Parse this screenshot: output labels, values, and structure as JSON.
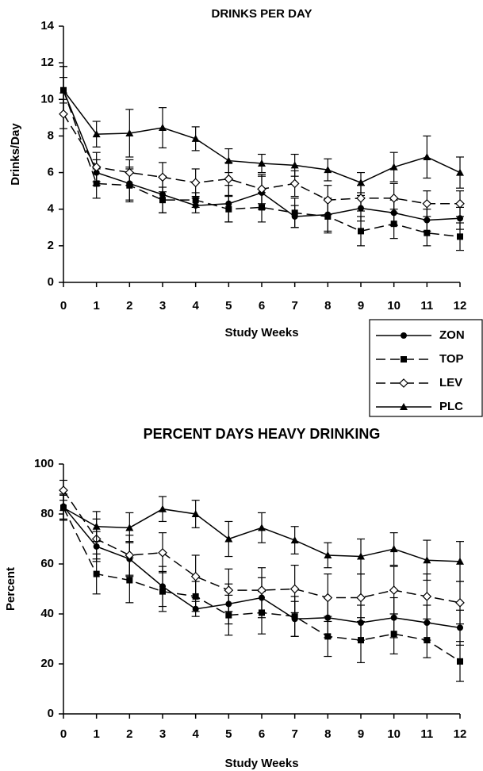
{
  "chart_data": [
    {
      "type": "line",
      "title": "DRINKS PER DAY",
      "x_label": "Study Weeks",
      "y_label": "Drinks/Day",
      "x": [
        0,
        1,
        2,
        3,
        4,
        5,
        6,
        7,
        8,
        9,
        10,
        11,
        12
      ],
      "xlim": [
        0,
        12
      ],
      "xticks": [
        0,
        1,
        2,
        3,
        4,
        5,
        6,
        7,
        8,
        9,
        10,
        11,
        12
      ],
      "ylim": [
        0,
        14
      ],
      "yticks": [
        0,
        2,
        4,
        6,
        8,
        10,
        12,
        14
      ],
      "legend": "bottom-right",
      "series": [
        {
          "name": "ZON",
          "color": "#000000",
          "marker": "circle",
          "dash": false,
          "values": [
            10.5,
            6.0,
            5.4,
            4.8,
            4.2,
            4.3,
            4.9,
            3.6,
            3.7,
            4.05,
            3.8,
            3.4,
            3.5
          ],
          "errors": [
            1.3,
            0.7,
            0.9,
            1.0,
            0.4,
            1.0,
            0.9,
            0.6,
            0.9,
            0.7,
            0.7,
            0.6,
            0.6
          ]
        },
        {
          "name": "TOP",
          "color": "#000000",
          "marker": "square",
          "dash": true,
          "values": [
            10.5,
            5.4,
            5.3,
            4.5,
            4.5,
            4.0,
            4.1,
            3.8,
            3.6,
            2.8,
            3.2,
            2.7,
            2.5
          ],
          "errors": [
            1.3,
            0.8,
            0.9,
            0.7,
            0.4,
            0.7,
            0.8,
            0.8,
            0.9,
            0.8,
            0.8,
            0.7,
            0.75
          ]
        },
        {
          "name": "LEV",
          "color": "#000000",
          "marker": "diamond",
          "dash": true,
          "values": [
            9.2,
            6.3,
            6.0,
            5.75,
            5.45,
            5.65,
            5.1,
            5.4,
            4.5,
            4.6,
            4.6,
            4.3,
            4.3
          ],
          "errors": [
            0.8,
            0.8,
            0.7,
            0.8,
            0.75,
            0.9,
            0.8,
            0.7,
            0.8,
            0.7,
            0.8,
            0.7,
            0.7
          ]
        },
        {
          "name": "PLC",
          "color": "#000000",
          "marker": "triangle",
          "dash": false,
          "values": [
            10.5,
            8.1,
            8.15,
            8.45,
            7.85,
            6.65,
            6.5,
            6.4,
            6.15,
            5.45,
            6.3,
            6.85,
            6.0
          ],
          "errors": [
            0.7,
            0.7,
            1.3,
            1.1,
            0.65,
            0.65,
            0.5,
            0.6,
            0.6,
            0.55,
            0.8,
            1.15,
            0.85
          ]
        }
      ]
    },
    {
      "type": "line",
      "title": "PERCENT DAYS HEAVY DRINKING",
      "x_label": "Study Weeks",
      "y_label": "Percent",
      "x": [
        0,
        1,
        2,
        3,
        4,
        5,
        6,
        7,
        8,
        9,
        10,
        11,
        12
      ],
      "xlim": [
        0,
        12
      ],
      "xticks": [
        0,
        1,
        2,
        3,
        4,
        5,
        6,
        7,
        8,
        9,
        10,
        11,
        12
      ],
      "ylim": [
        0,
        100
      ],
      "yticks": [
        0,
        20,
        40,
        60,
        80,
        100
      ],
      "series": [
        {
          "name": "ZON",
          "color": "#000000",
          "marker": "circle",
          "dash": false,
          "values": [
            83,
            67,
            62,
            51,
            42,
            44,
            46.5,
            38,
            38.5,
            36.5,
            38.5,
            36.5,
            34.5
          ],
          "errors": [
            5,
            6,
            7,
            8,
            3,
            8,
            8,
            7,
            8,
            7,
            8,
            7,
            7
          ]
        },
        {
          "name": "TOP",
          "color": "#000000",
          "marker": "square",
          "dash": true,
          "values": [
            82.5,
            56,
            53.5,
            49,
            47,
            39.5,
            40.5,
            39,
            31,
            29.5,
            32,
            29.5,
            21
          ],
          "errors": [
            5,
            8,
            9,
            8,
            6,
            8,
            8.5,
            8,
            8,
            9,
            8,
            7,
            8
          ]
        },
        {
          "name": "LEV",
          "color": "#000000",
          "marker": "diamond",
          "dash": true,
          "values": [
            89.5,
            70,
            63.5,
            64.5,
            55,
            49.5,
            49.5,
            50,
            46.5,
            46.5,
            49.5,
            47,
            44.5
          ],
          "errors": [
            4,
            8,
            8,
            8,
            8.5,
            8.5,
            9,
            9.5,
            9.5,
            9.5,
            9.5,
            9,
            8.5
          ]
        },
        {
          "name": "PLC",
          "color": "#000000",
          "marker": "triangle",
          "dash": false,
          "values": [
            82.5,
            75,
            74.5,
            82,
            80,
            70,
            74.5,
            69.5,
            63.5,
            63,
            66,
            61.5,
            61
          ],
          "errors": [
            5,
            6,
            6,
            5,
            5.5,
            7,
            6,
            5.5,
            5,
            7,
            6.5,
            8,
            8
          ]
        }
      ]
    }
  ]
}
